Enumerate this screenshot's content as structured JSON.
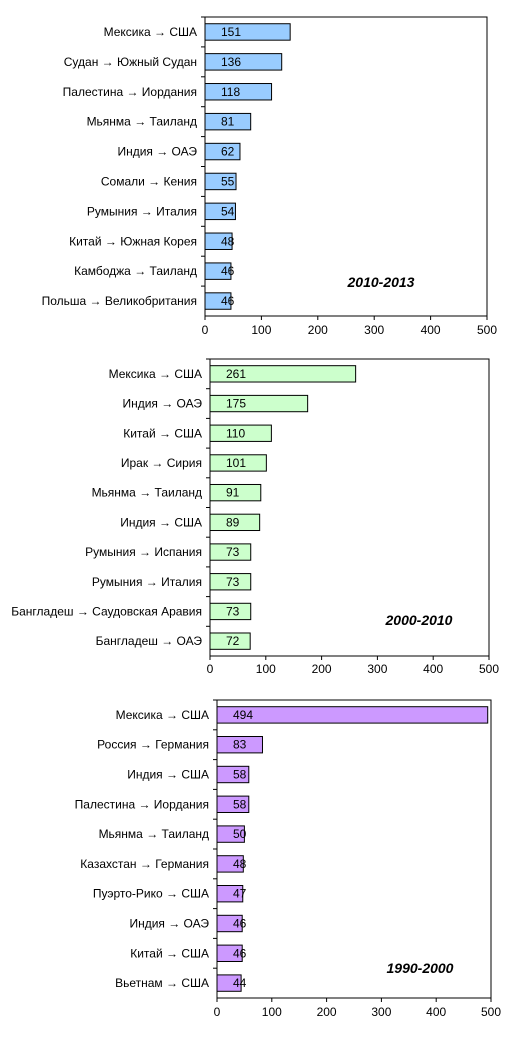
{
  "chart_data": [
    {
      "type": "bar",
      "orientation": "horizontal",
      "title": "",
      "annotation": "2010-2013",
      "bar_color": "#99ccff",
      "xlim": [
        0,
        500
      ],
      "xticks": [
        "0",
        "100",
        "200",
        "300",
        "400",
        "500"
      ],
      "grid": false,
      "categories": [
        "Мексика → США",
        "Судан → Южный Судан",
        "Палестина → Иордания",
        "Мьянма → Таиланд",
        "Индия → ОАЭ",
        "Сомали → Кения",
        "Румыния → Италия",
        "Китай → Южная Корея",
        "Камбоджа → Таиланд",
        "Польша → Великобритания"
      ],
      "values": [
        151,
        136,
        118,
        81,
        62,
        55,
        54,
        48,
        46,
        46
      ],
      "labels": [
        "151",
        "136",
        "118",
        "81",
        "62",
        "55",
        "54",
        "48",
        "46",
        "46"
      ]
    },
    {
      "type": "bar",
      "orientation": "horizontal",
      "title": "",
      "annotation": "2000-2010",
      "bar_color": "#ccffcc",
      "xlim": [
        0,
        500
      ],
      "xticks": [
        "0",
        "100",
        "200",
        "300",
        "400",
        "500"
      ],
      "grid": false,
      "categories": [
        "Мексика → США",
        "Индия → ОАЭ",
        "Китай → США",
        "Ирак → Сирия",
        "Мьянма → Таиланд",
        "Индия → США",
        "Румыния → Испания",
        "Румыния → Италия",
        "Бангладеш → Саудовская Аравия",
        "Бангладеш → ОАЭ"
      ],
      "values": [
        261,
        175,
        110,
        101,
        91,
        89,
        73,
        73,
        73,
        72
      ],
      "labels": [
        "261",
        "175",
        "110",
        "101",
        "91",
        "89",
        "73",
        "73",
        "73",
        "72"
      ]
    },
    {
      "type": "bar",
      "orientation": "horizontal",
      "title": "",
      "annotation": "1990-2000",
      "bar_color": "#cc99ff",
      "xlim": [
        0,
        500
      ],
      "xticks": [
        "0",
        "100",
        "200",
        "300",
        "400",
        "500"
      ],
      "grid": false,
      "categories": [
        "Мексика → США",
        "Россия → Германия",
        "Индия → США",
        "Палестина → Иордания",
        "Мьянма → Таиланд",
        "Казахстан → Германия",
        "Пуэрто-Рико → США",
        "Индия → ОАЭ",
        "Китай → США",
        "Вьетнам → США"
      ],
      "values": [
        494,
        83,
        58,
        58,
        50,
        48,
        47,
        46,
        46,
        44
      ],
      "labels": [
        "494",
        "83",
        "58",
        "58",
        "50",
        "48",
        "47",
        "46",
        "46",
        "44"
      ]
    }
  ]
}
